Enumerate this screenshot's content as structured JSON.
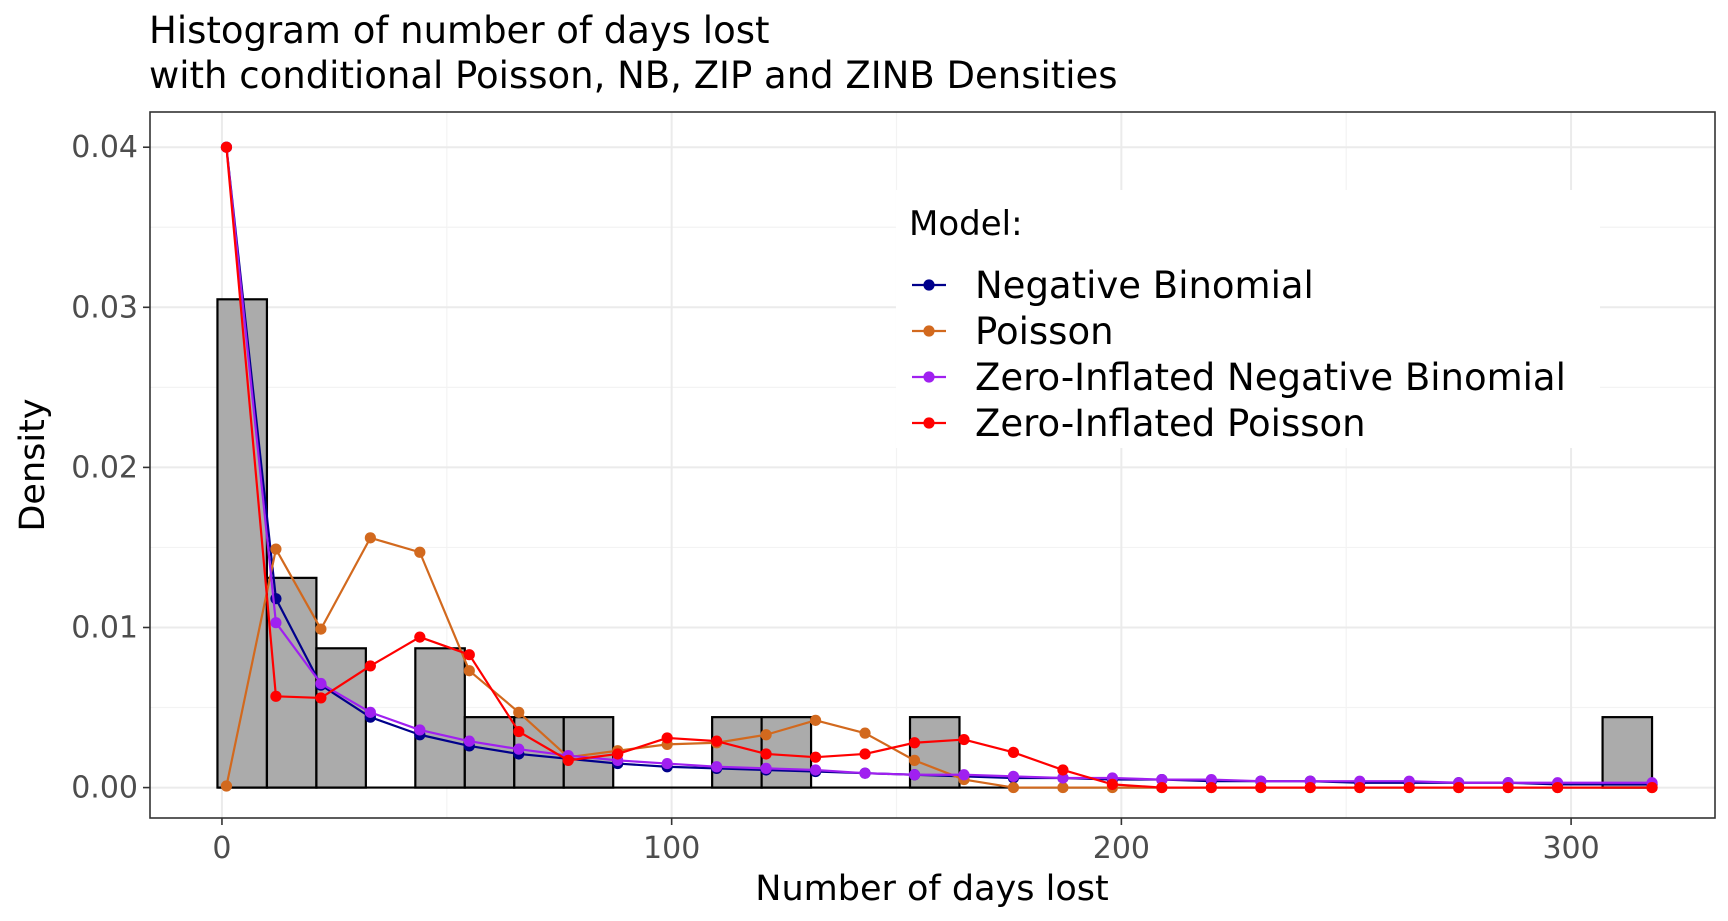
{
  "chart_data": {
    "type": "bar",
    "title": "Histogram of number of days lost",
    "subtitle": "with conditional Poisson, NB, ZIP and ZINB Densities",
    "xlabel": "Number of days lost",
    "ylabel": "Density",
    "xlim": [
      -16,
      332
    ],
    "ylim": [
      -0.0019,
      0.0422
    ],
    "xticks": [
      0,
      100,
      200,
      300
    ],
    "xtick_labels": [
      "0",
      "100",
      "200",
      "300"
    ],
    "yticks": [
      0,
      0.01,
      0.02,
      0.03,
      0.04
    ],
    "ytick_labels": [
      "0.00",
      "0.01",
      "0.02",
      "0.03",
      "0.04"
    ],
    "grid": true,
    "legend_title": "Model:",
    "legend_position": "top-right",
    "histogram": {
      "bin_width": 11,
      "bins": [
        {
          "x0": -1,
          "x1": 10,
          "density": 0.0305
        },
        {
          "x0": 10,
          "x1": 21,
          "density": 0.0131
        },
        {
          "x0": 21,
          "x1": 32,
          "density": 0.0087
        },
        {
          "x0": 43,
          "x1": 54,
          "density": 0.0087
        },
        {
          "x0": 54,
          "x1": 65,
          "density": 0.0044
        },
        {
          "x0": 65,
          "x1": 76,
          "density": 0.0044
        },
        {
          "x0": 76,
          "x1": 87,
          "density": 0.0044
        },
        {
          "x0": 109,
          "x1": 120,
          "density": 0.0044
        },
        {
          "x0": 120,
          "x1": 131,
          "density": 0.0044
        },
        {
          "x0": 153,
          "x1": 164,
          "density": 0.0044
        },
        {
          "x0": 307,
          "x1": 318,
          "density": 0.0044
        }
      ],
      "fill": "#ababab",
      "stroke": "#000000"
    },
    "x": [
      1,
      12,
      22,
      33,
      44,
      55,
      66,
      77,
      88,
      99,
      110,
      121,
      132,
      143,
      154,
      165,
      176,
      187,
      198,
      209,
      220,
      231,
      242,
      253,
      264,
      275,
      286,
      297,
      318
    ],
    "series": [
      {
        "name": "Negative Binomial",
        "color": "#00008b",
        "values": [
          0.04,
          0.0118,
          0.0064,
          0.0044,
          0.0033,
          0.0026,
          0.0021,
          0.0018,
          0.0015,
          0.0013,
          0.0012,
          0.0011,
          0.001,
          0.0009,
          0.0008,
          0.0007,
          0.0006,
          0.0006,
          0.0005,
          0.0005,
          0.0004,
          0.0004,
          0.0004,
          0.0003,
          0.0003,
          0.0003,
          0.0003,
          0.0002,
          0.0002
        ]
      },
      {
        "name": "Poisson",
        "color": "#d2691e",
        "values": [
          0.0001,
          0.0149,
          0.0099,
          0.0156,
          0.0147,
          0.0073,
          0.0047,
          0.0019,
          0.0023,
          0.0027,
          0.0028,
          0.0033,
          0.0042,
          0.0034,
          0.0017,
          0.0005,
          0.0,
          0.0,
          0.0,
          0.0,
          0.0,
          0.0,
          0.0,
          0.0,
          0.0,
          0.0,
          0.0,
          0.0,
          0.0
        ]
      },
      {
        "name": "Zero-Inflated Negative Binomial",
        "color": "#a020f0",
        "values": [
          0.04,
          0.0103,
          0.0065,
          0.0047,
          0.0036,
          0.0029,
          0.0024,
          0.002,
          0.0017,
          0.0015,
          0.0013,
          0.0012,
          0.0011,
          0.0009,
          0.0008,
          0.0008,
          0.0007,
          0.0006,
          0.0006,
          0.0005,
          0.0005,
          0.0004,
          0.0004,
          0.0004,
          0.0004,
          0.0003,
          0.0003,
          0.0003,
          0.0003
        ]
      },
      {
        "name": "Zero-Inflated Poisson",
        "color": "#ff0000",
        "values": [
          0.04,
          0.0057,
          0.0056,
          0.0076,
          0.0094,
          0.0083,
          0.0035,
          0.0017,
          0.0021,
          0.0031,
          0.0029,
          0.0021,
          0.0019,
          0.0021,
          0.0028,
          0.003,
          0.0022,
          0.0011,
          0.0002,
          0.0,
          0.0,
          0.0,
          0.0,
          0.0,
          0.0,
          0.0,
          0.0,
          0.0,
          0.0
        ]
      }
    ]
  }
}
